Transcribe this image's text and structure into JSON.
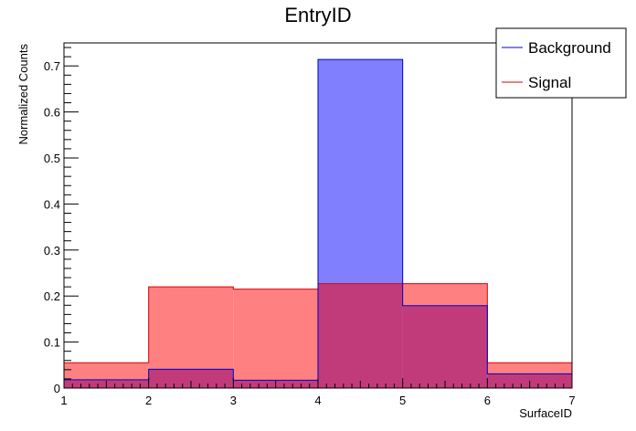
{
  "chart_data": {
    "type": "bar",
    "histogram": true,
    "title": "EntryID",
    "xlabel": "SurfaceID",
    "ylabel": "Normalized Counts",
    "xlim": [
      1,
      7
    ],
    "ylim": [
      0,
      0.75
    ],
    "bin_edges": [
      1,
      2,
      3,
      4,
      5,
      6,
      7
    ],
    "x_ticks": [
      "1",
      "2",
      "3",
      "4",
      "5",
      "6",
      "7"
    ],
    "y_ticks": [
      "0",
      "0.1",
      "0.2",
      "0.3",
      "0.4",
      "0.5",
      "0.6",
      "0.7"
    ],
    "legend_position": "top-right",
    "grid": false,
    "series": [
      {
        "name": "Background",
        "values": [
          0.018,
          0.041,
          0.017,
          0.714,
          0.179,
          0.031
        ],
        "fill": "#8080ff",
        "line": "#0000cc"
      },
      {
        "name": "Signal",
        "values": [
          0.055,
          0.22,
          0.215,
          0.227,
          0.227,
          0.055
        ],
        "fill": "#ff8080",
        "line": "#dd0000"
      }
    ],
    "overlap_fill": "#c13b7b"
  }
}
